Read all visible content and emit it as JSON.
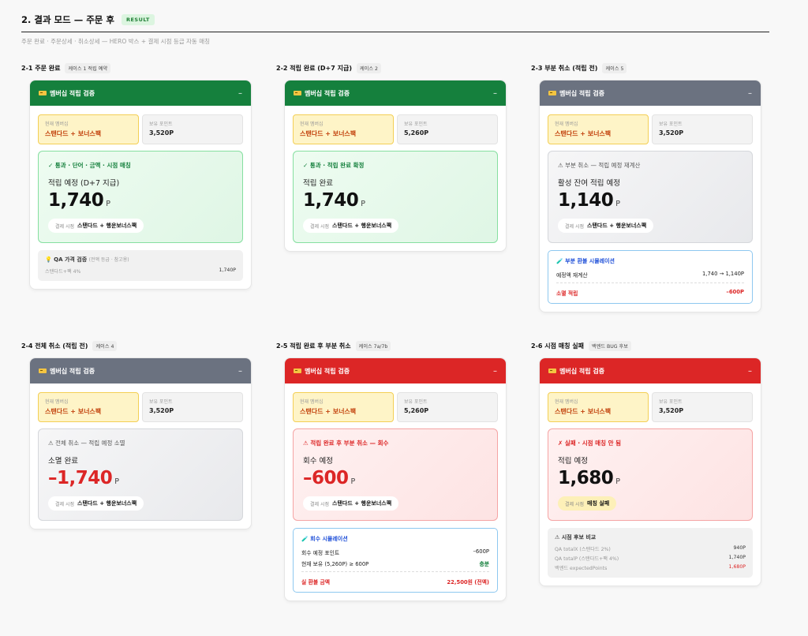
{
  "page": {
    "title": "2. 결과 모드 — 주문 후",
    "badge": "RESULT",
    "subtitle": "주문 완료 · 주문상세 · 취소상세 — HERO 박스 + 결제 시점 등급 자동 매칭"
  },
  "card_common": {
    "header_title": "멤버십 적립 검증",
    "minimize": "–",
    "tier_label": "현재 멤버십",
    "points_label": "보유 포인트",
    "pay_label": "결제 시점"
  },
  "sections": [
    {
      "label": "2-1 주문 완료",
      "tag": "케이스 1 적립 예약",
      "header_color": "#15803d",
      "tier": "스탠다드 + 보너스팩",
      "points": "3,520P",
      "hero_status": "✓ 통과 · 단어 · 금액 · 시점 매칭",
      "hero_label": "적립 예정 (D+7 지급)",
      "hero_amount": "1,740",
      "hero_unit": "P",
      "pay_value": "스탠다드 + 행운보너스팩",
      "qa": {
        "title": "QA 가격 검증",
        "title_note": "(전액 등급 · 참고용)",
        "rows": [
          {
            "label": "스탠다드+팩 4%",
            "value": "1,740P"
          }
        ]
      }
    },
    {
      "label": "2-2 적립 완료 (D+7 지급)",
      "tag": "케이스 2",
      "header_color": "#15803d",
      "tier": "스탠다드 + 보너스팩",
      "points": "5,260P",
      "hero_status": "✓ 통과 · 적립 완료 확정",
      "hero_label": "적립 완료",
      "hero_amount": "1,740",
      "hero_unit": "P",
      "pay_value": "스탠다드 + 행운보너스팩"
    },
    {
      "label": "2-3 부분 취소 (적립 전)",
      "tag": "케이스 5",
      "header_color": "#6b7280",
      "tier": "스탠다드 + 보너스팩",
      "points": "3,520P",
      "hero_status": "⚠ 부분 취소 — 적립 예정 재계산",
      "hero_label": "활성 잔여 적립 예정",
      "hero_amount": "1,140",
      "hero_unit": "P",
      "pay_value": "스탠다드 + 행운보너스팩",
      "sim": {
        "title": "🧪 부분 환불 시뮬레이션",
        "rows": [
          {
            "label": "예정액 재계산",
            "value": "1,740 → 1,140P"
          }
        ],
        "total": {
          "label": "소멸 적립",
          "value": "–600P"
        }
      }
    },
    {
      "label": "2-4 전체 취소 (적립 전)",
      "tag": "케이스 4",
      "header_color": "#6b7280",
      "tier": "스탠다드 + 보너스팩",
      "points": "3,520P",
      "hero_status": "⚠ 전체 취소 — 적립 예정 소멸",
      "hero_label": "소멸 완료",
      "hero_amount": "–1,740",
      "hero_unit": "P",
      "pay_value": "스탠다드 + 행운보너스팩"
    },
    {
      "label": "2-5 적립 완료 후 부분 취소",
      "tag": "케이스 7a/7b",
      "header_color": "#dc2626",
      "tier": "스탠다드 + 보너스팩",
      "points": "5,260P",
      "hero_status": "⚠ 적립 완료 후 부분 취소 — 회수",
      "hero_label": "회수 예정",
      "hero_amount": "–600",
      "hero_unit": "P",
      "pay_value": "스탠다드 + 행운보너스팩",
      "sim": {
        "title": "🧪 회수 시뮬레이션",
        "rows": [
          {
            "label": "회수 예정 포인트",
            "value": "–600P"
          },
          {
            "label": "현재 보유 (5,260P) ≥ 600P",
            "value": "충분"
          }
        ],
        "total": {
          "label": "실 환불 금액",
          "value": "22,500원 (전액)"
        }
      }
    },
    {
      "label": "2-6 시점 매칭 실패",
      "tag": "백엔드 BUG 후보",
      "header_color": "#dc2626",
      "tier": "스탠다드 + 보너스팩",
      "points": "3,520P",
      "hero_status": "✗ 실패 · 시점 매칭 안 됨",
      "hero_label": "적립 예정",
      "hero_amount": "1,680",
      "hero_unit": "P",
      "pay_value": "매칭 실패",
      "qa": {
        "title": "⚠ 시점 후보 비교",
        "title_note": "",
        "rows": [
          {
            "label": "QA totalX (스탠다드 2%)",
            "value": "940P"
          },
          {
            "label": "QA totalP (스탠다드+팩 4%)",
            "value": "1,740P"
          },
          {
            "label": "백엔드 expectedPoints",
            "value": "1,680P"
          }
        ]
      }
    }
  ]
}
